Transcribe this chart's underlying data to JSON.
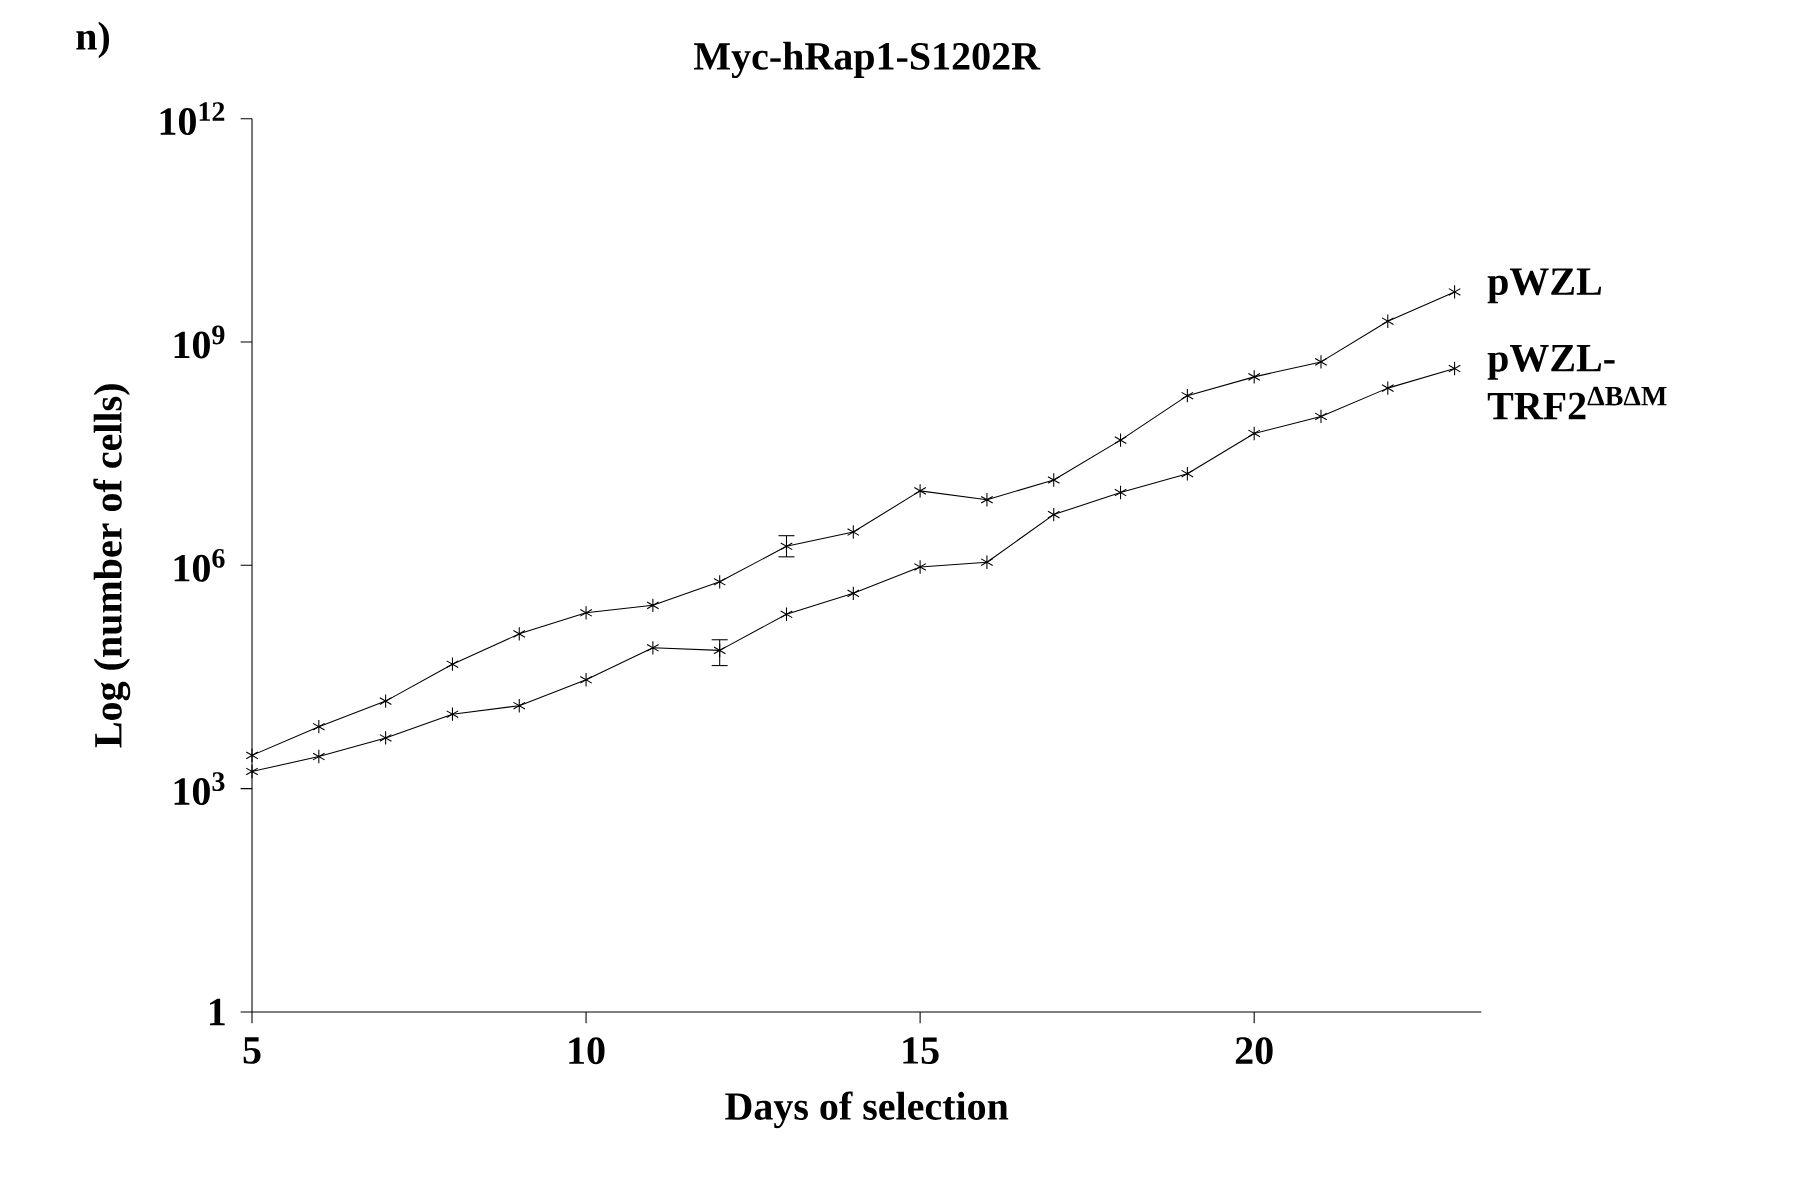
{
  "chart_data": {
    "type": "line",
    "title": "Myc-hRap1-S1202R",
    "xlabel": "Days of selection",
    "ylabel": "Log (number of cells)",
    "annotations": [
      "n)"
    ],
    "x": [
      5,
      6,
      7,
      8,
      9,
      10,
      11,
      12,
      13,
      14,
      15,
      16,
      17,
      18,
      19,
      20,
      21,
      22,
      23
    ],
    "series": [
      {
        "name": "pWZL",
        "color": "#000000",
        "values": [
          2800,
          6800,
          15000,
          47000,
          120000,
          230000,
          290000,
          600000,
          1800000,
          2800000,
          10000000,
          7600000,
          14000000,
          48000000,
          190000000,
          340000000,
          540000000,
          1900000000,
          4700000000
        ],
        "errors": [
          null,
          null,
          null,
          null,
          null,
          null,
          null,
          null,
          [
            1300000,
            2500000
          ],
          null,
          null,
          null,
          null,
          null,
          null,
          null,
          null,
          null,
          null
        ]
      },
      {
        "name": "pWZL-TRF2$^{ΔBΔM}$",
        "color": "#000000",
        "values": [
          1700,
          2700,
          4800,
          10000,
          13000,
          29000,
          78000,
          72000,
          220000,
          420000,
          950000,
          1100000,
          4800000,
          9500000,
          17000000,
          59000000,
          100000000,
          240000000,
          440000000
        ],
        "errors": [
          null,
          null,
          null,
          null,
          null,
          null,
          null,
          [
            45000,
            100000
          ],
          null,
          null,
          null,
          null,
          null,
          null,
          null,
          null,
          null,
          null,
          null
        ]
      }
    ],
    "log": "y",
    "xlim": [
      5,
      23.4
    ],
    "ylim": [
      1,
      1000000000000
    ],
    "xticks": [
      5,
      10,
      15,
      20
    ],
    "yticks": [
      1,
      {
        "value": 1000,
        "label": "10$^{3}$"
      },
      {
        "value": 1000000,
        "label": "10$^{6}$"
      },
      {
        "value": 1000000000,
        "label": "10$^{9}$"
      },
      {
        "value": 1000000000000,
        "label": "10$^{12}$"
      }
    ],
    "grid": false,
    "legend": false,
    "marker": "cross",
    "line_style": "solid"
  }
}
